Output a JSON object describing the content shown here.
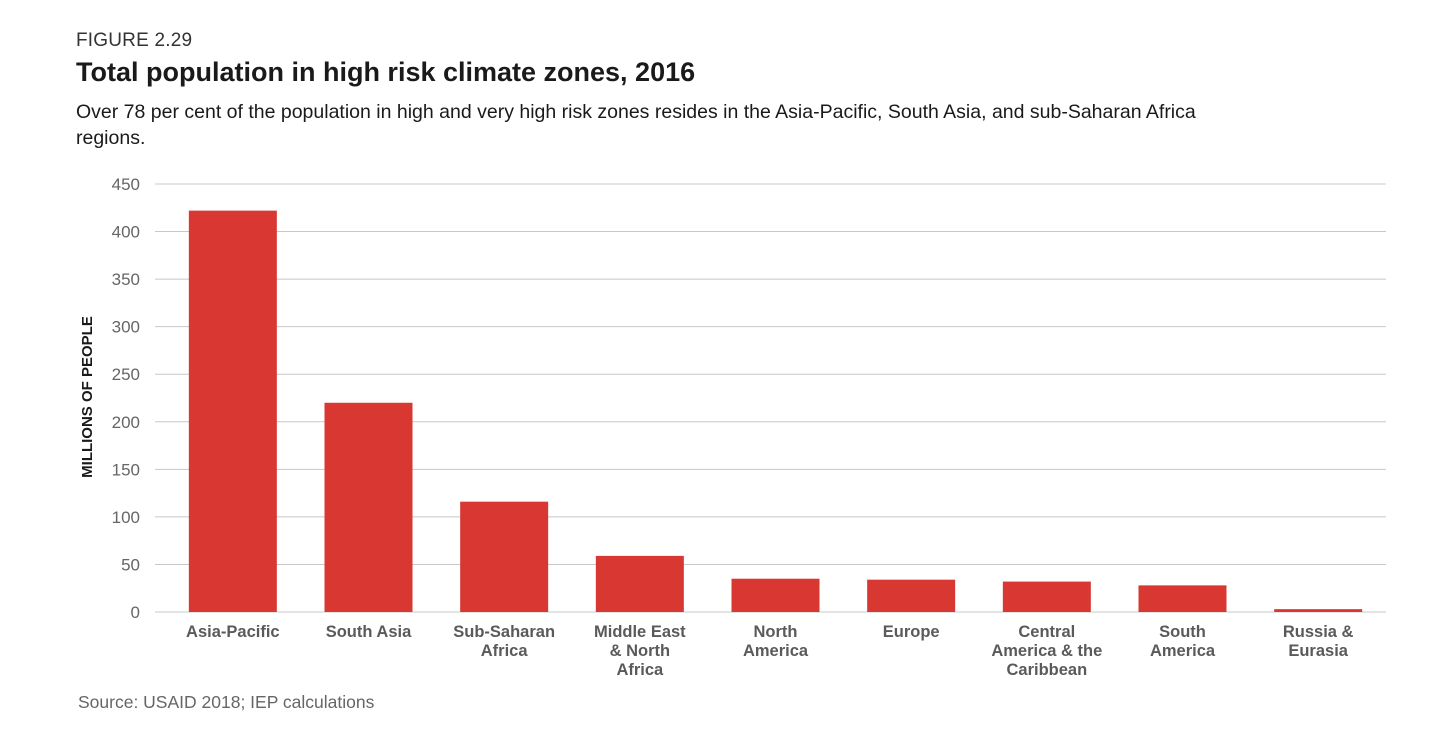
{
  "figure_label": "FIGURE 2.29",
  "title": "Total population in high risk climate zones, 2016",
  "subtitle": "Over 78 per cent of the population in high and very high risk zones resides in the Asia-Pacific, South Asia, and sub-Saharan Africa regions.",
  "source": "Source: USAID 2018; IEP calculations",
  "colors": {
    "bar": "#d93832",
    "grid": "#c8c8c8",
    "tick_text": "#666666",
    "category_text": "#5a5a5a"
  },
  "chart_data": {
    "type": "bar",
    "ylabel": "MILLIONS OF PEOPLE",
    "xlabel": "",
    "ylim": [
      0,
      450
    ],
    "yticks": [
      0,
      50,
      100,
      150,
      200,
      250,
      300,
      350,
      400,
      450
    ],
    "grid": true,
    "categories": [
      [
        "Asia-Pacific"
      ],
      [
        "South Asia"
      ],
      [
        "Sub-Saharan",
        "Africa"
      ],
      [
        "Middle East",
        "& North",
        "Africa"
      ],
      [
        "North",
        "America"
      ],
      [
        "Europe"
      ],
      [
        "Central",
        "America & the",
        "Caribbean"
      ],
      [
        "South",
        "America"
      ],
      [
        "Russia &",
        "Eurasia"
      ]
    ],
    "values": [
      422,
      220,
      116,
      59,
      35,
      34,
      32,
      28,
      3
    ]
  }
}
